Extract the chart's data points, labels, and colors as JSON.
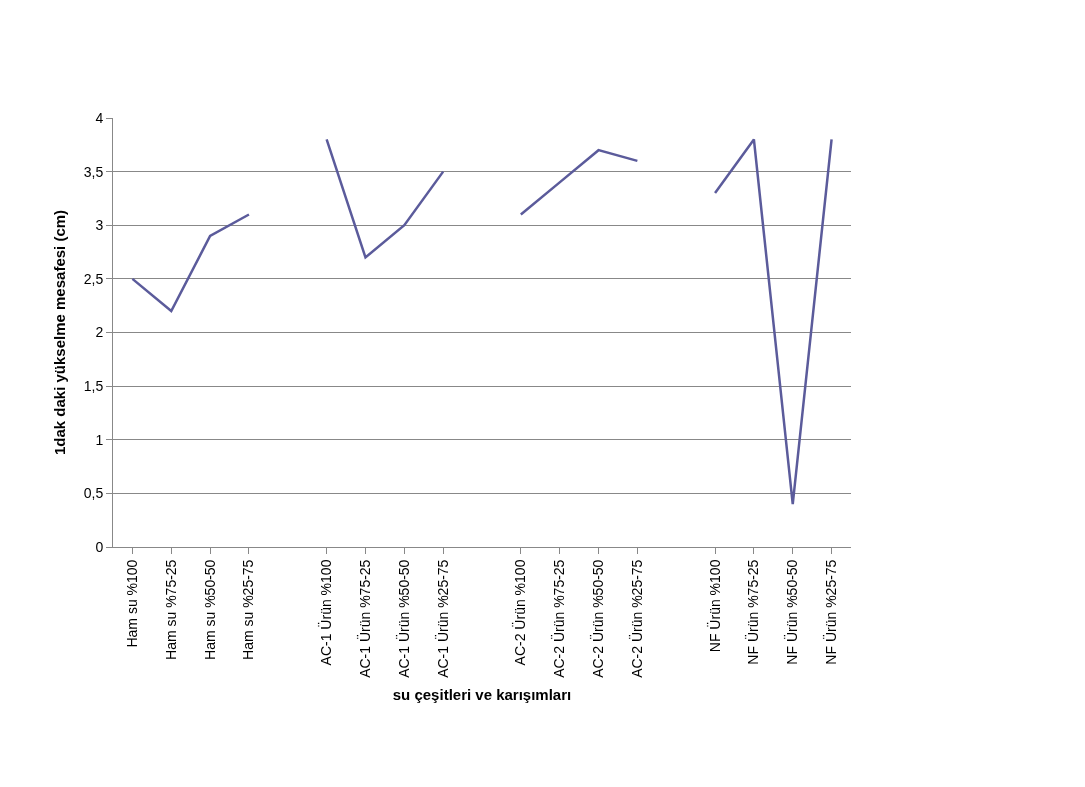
{
  "chart_data": {
    "type": "line",
    "xlabel": "su çeşitleri ve karışımları",
    "ylabel": "1dak daki yükselme mesafesi (cm)",
    "categories": [
      "Ham su %100",
      "Ham su %75-25",
      "Ham su %50-50",
      "Ham su %25-75",
      null,
      "AC-1 Ürün %100",
      "AC-1 Ürün %75-25",
      "AC-1 Ürün %50-50",
      "AC-1 Ürün %25-75",
      null,
      "AC-2 Ürün %100",
      "AC-2 Ürün %75-25",
      "AC-2 Ürün %50-50",
      "AC-2 Ürün %25-75",
      null,
      "NF Ürün %100",
      "NF Ürün %75-25",
      "NF Ürün %50-50",
      "NF Ürün %25-75"
    ],
    "series": [
      {
        "color": "#5b5b9b",
        "values": [
          2.5,
          2.2,
          2.9,
          3.1,
          null,
          3.8,
          2.7,
          3.0,
          3.5,
          null,
          3.1,
          3.4,
          3.7,
          3.6,
          null,
          3.3,
          3.8,
          0.4,
          3.8
        ]
      }
    ],
    "ylim": [
      0,
      4
    ],
    "yticks": [
      0,
      {
        "value": 0.5,
        "label": "0,5"
      },
      1,
      {
        "value": 1.5,
        "label": "1,5"
      },
      2,
      {
        "value": 2.5,
        "label": "2,5"
      },
      3,
      {
        "value": 3.5,
        "label": "3,5"
      },
      4
    ],
    "grid": "y",
    "marker": "none"
  }
}
